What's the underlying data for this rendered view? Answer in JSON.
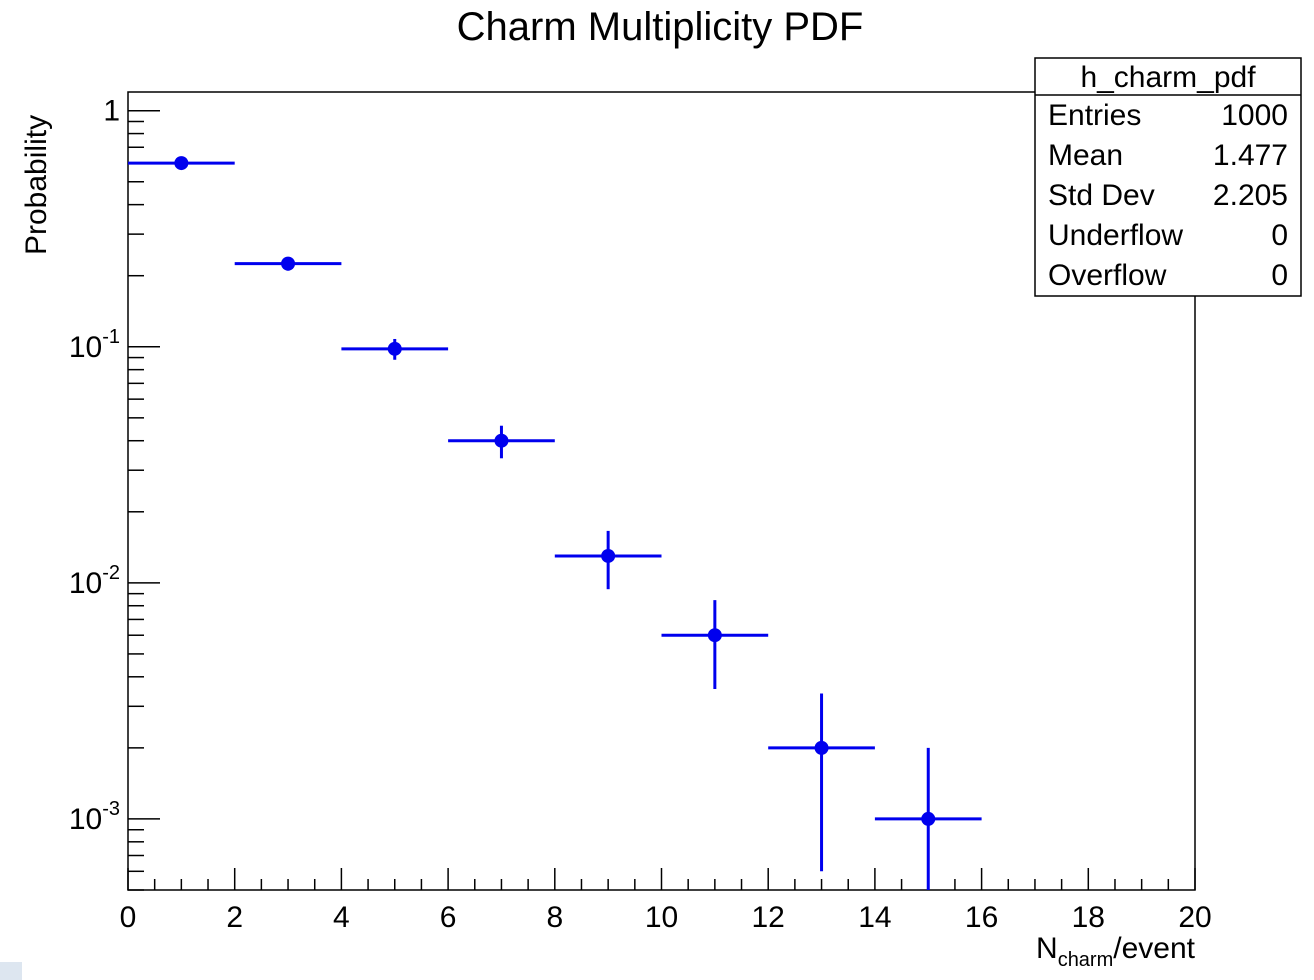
{
  "chart_data": {
    "type": "scatter",
    "title": "Charm Multiplicity PDF",
    "xlabel_main": "N",
    "xlabel_sub": "charm",
    "xlabel_suffix": "/event",
    "ylabel": "Probability",
    "xlim": [
      0,
      20
    ],
    "ylim": [
      0.0005,
      1.2
    ],
    "y_scale": "log",
    "x_ticks": [
      "0",
      "2",
      "4",
      "6",
      "8",
      "10",
      "12",
      "14",
      "16",
      "18",
      "20"
    ],
    "y_ticks": [
      {
        "value": 1,
        "base": "1",
        "exp": ""
      },
      {
        "value": 0.1,
        "base": "10",
        "exp": "-1"
      },
      {
        "value": 0.01,
        "base": "10",
        "exp": "-2"
      },
      {
        "value": 0.001,
        "base": "10",
        "exp": "-3"
      }
    ],
    "grid": false,
    "legend": "none",
    "series_color": "#0000ee",
    "points": [
      {
        "x": 1,
        "y": 0.6,
        "x_low": 0,
        "x_high": 2,
        "y_err": 0.024
      },
      {
        "x": 3,
        "y": 0.225,
        "x_low": 2,
        "x_high": 4,
        "y_err": 0.015
      },
      {
        "x": 5,
        "y": 0.098,
        "x_low": 4,
        "x_high": 6,
        "y_err": 0.0099
      },
      {
        "x": 7,
        "y": 0.04,
        "x_low": 6,
        "x_high": 8,
        "y_err": 0.0063
      },
      {
        "x": 9,
        "y": 0.013,
        "x_low": 8,
        "x_high": 10,
        "y_err": 0.0036
      },
      {
        "x": 11,
        "y": 0.006,
        "x_low": 10,
        "x_high": 12,
        "y_err": 0.00245
      },
      {
        "x": 13,
        "y": 0.002,
        "x_low": 12,
        "x_high": 14,
        "y_err": 0.0014
      },
      {
        "x": 15,
        "y": 0.001,
        "x_low": 14,
        "x_high": 16,
        "y_err": 0.001
      }
    ],
    "stats_box": {
      "name": "h_charm_pdf",
      "rows": [
        {
          "label": "Entries",
          "value": "1000"
        },
        {
          "label": "Mean",
          "value": "1.477"
        },
        {
          "label": "Std Dev",
          "value": "2.205"
        },
        {
          "label": "Underflow",
          "value": "0"
        },
        {
          "label": "Overflow",
          "value": "0"
        }
      ]
    }
  }
}
